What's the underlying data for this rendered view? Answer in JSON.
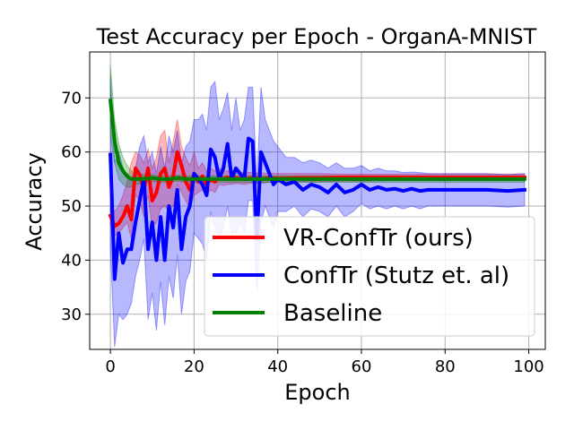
{
  "chart_data": {
    "type": "line",
    "title": "Test Accuracy per Epoch - OrganA-MNIST",
    "xlabel": "Epoch",
    "ylabel": "Accuracy",
    "xlim": [
      -4.95,
      103.95
    ],
    "ylim": [
      23.5,
      78.5
    ],
    "xticks": [
      0,
      20,
      40,
      60,
      80,
      100
    ],
    "yticks": [
      30,
      40,
      50,
      60,
      70
    ],
    "grid": true,
    "legend_position": "lower-right",
    "series": [
      {
        "name": "VR-ConfTr (ours)",
        "color": "#ff0000",
        "band_color": "#ff0000",
        "x": [
          0,
          1,
          2,
          3,
          4,
          5,
          6,
          7,
          8,
          9,
          10,
          11,
          12,
          13,
          14,
          15,
          16,
          17,
          18,
          19,
          20,
          21,
          22,
          23,
          24,
          25,
          26,
          27,
          28,
          29,
          30,
          32,
          34,
          36,
          38,
          40,
          45,
          50,
          55,
          60,
          65,
          70,
          75,
          80,
          85,
          90,
          95,
          99
        ],
        "mean": [
          48.2,
          46.3,
          46.8,
          48.0,
          50.0,
          47.5,
          57.0,
          55.8,
          53.0,
          57.0,
          51.0,
          52.5,
          56.0,
          57.0,
          53.5,
          55.5,
          60.0,
          57.5,
          54.5,
          53.0,
          56.0,
          54.5,
          55.5,
          54.0,
          55.0,
          54.5,
          55.5,
          55.0,
          55.3,
          55.0,
          55.2,
          55.0,
          55.2,
          55.0,
          55.2,
          55.1,
          55.2,
          55.2,
          55.3,
          55.3,
          55.3,
          55.3,
          55.3,
          55.3,
          55.3,
          55.3,
          55.3,
          55.3
        ],
        "upper": [
          49.5,
          49.0,
          50.0,
          52.0,
          54.5,
          58.0,
          60.0,
          59.5,
          58.0,
          60.5,
          57.0,
          59.0,
          63.0,
          64.0,
          58.0,
          62.0,
          66.0,
          61.0,
          59.0,
          57.5,
          60.0,
          57.0,
          58.0,
          56.5,
          57.0,
          56.5,
          57.0,
          56.5,
          56.5,
          56.3,
          56.3,
          56.2,
          56.2,
          56.1,
          56.1,
          56.0,
          56.0,
          56.0,
          55.9,
          55.9,
          55.9,
          55.9,
          55.9,
          55.9,
          55.9,
          55.9,
          55.9,
          55.9
        ],
        "lower": [
          46.5,
          44.5,
          45.0,
          46.0,
          47.0,
          44.0,
          52.0,
          51.0,
          48.0,
          52.0,
          46.0,
          47.0,
          49.5,
          50.0,
          49.0,
          50.0,
          54.0,
          52.5,
          51.0,
          49.5,
          52.0,
          52.5,
          53.0,
          52.0,
          53.0,
          52.5,
          54.0,
          53.8,
          54.0,
          54.0,
          54.2,
          54.0,
          54.3,
          54.2,
          54.4,
          54.4,
          54.5,
          54.5,
          54.6,
          54.6,
          54.7,
          54.7,
          54.7,
          54.7,
          54.7,
          54.7,
          54.7,
          54.7
        ]
      },
      {
        "name": "ConfTr (Stutz et. al)",
        "color": "#0000ff",
        "band_color": "#0000ff",
        "x": [
          0,
          1,
          2,
          3,
          4,
          5,
          6,
          7,
          8,
          9,
          10,
          11,
          12,
          13,
          14,
          15,
          16,
          17,
          18,
          19,
          20,
          21,
          22,
          23,
          24,
          25,
          26,
          27,
          28,
          29,
          30,
          31,
          32,
          33,
          34,
          35,
          36,
          37,
          38,
          39,
          40,
          42,
          44,
          46,
          48,
          50,
          52,
          54,
          56,
          58,
          60,
          62,
          64,
          66,
          68,
          70,
          72,
          74,
          76,
          78,
          80,
          85,
          90,
          95,
          99
        ],
        "mean": [
          59.5,
          36.5,
          45.0,
          39.5,
          42.0,
          42.0,
          47.0,
          51.0,
          55.0,
          42.0,
          47.0,
          40.0,
          48.0,
          40.0,
          50.0,
          46.0,
          53.0,
          42.0,
          48.0,
          50.0,
          56.0,
          55.0,
          54.0,
          52.0,
          60.5,
          59.0,
          55.0,
          57.0,
          61.5,
          55.0,
          57.0,
          56.0,
          55.0,
          62.5,
          62.0,
          44.0,
          60.0,
          58.0,
          56.0,
          54.0,
          55.0,
          54.0,
          54.5,
          53.0,
          54.0,
          53.5,
          52.5,
          54.0,
          52.5,
          53.0,
          54.0,
          53.0,
          53.5,
          53.0,
          53.2,
          52.8,
          53.2,
          52.8,
          53.0,
          53.0,
          53.0,
          53.0,
          53.0,
          52.8,
          53.0
        ],
        "upper": [
          74.0,
          58.0,
          60.0,
          57.0,
          56.0,
          55.0,
          57.0,
          61.0,
          63.0,
          58.0,
          60.0,
          56.0,
          61.0,
          57.0,
          63.0,
          60.0,
          64.0,
          58.0,
          61.0,
          62.0,
          66.0,
          66.0,
          67.0,
          64.0,
          72.0,
          73.0,
          66.0,
          68.0,
          71.0,
          64.0,
          70.0,
          64.0,
          66.0,
          72.0,
          72.0,
          54.0,
          72.0,
          66.0,
          64.0,
          62.0,
          61.0,
          59.0,
          59.0,
          58.0,
          58.5,
          58.0,
          57.0,
          58.0,
          57.0,
          57.0,
          57.5,
          56.5,
          57.0,
          56.5,
          56.5,
          56.2,
          56.3,
          56.2,
          56.0,
          56.0,
          56.0,
          56.0,
          56.0,
          55.8,
          56.0
        ],
        "lower": [
          42.0,
          24.0,
          30.0,
          29.0,
          30.0,
          32.0,
          37.0,
          40.0,
          44.0,
          29.0,
          34.0,
          27.0,
          36.0,
          28.0,
          37.0,
          33.0,
          41.0,
          30.0,
          36.0,
          38.0,
          45.0,
          44.0,
          43.0,
          40.0,
          49.0,
          46.0,
          44.0,
          46.0,
          50.0,
          45.0,
          45.0,
          47.0,
          45.0,
          51.0,
          51.0,
          34.0,
          47.0,
          50.0,
          48.0,
          46.0,
          49.0,
          49.0,
          50.0,
          48.0,
          49.5,
          49.0,
          48.0,
          50.0,
          48.0,
          49.0,
          50.5,
          49.5,
          50.0,
          49.5,
          50.0,
          49.5,
          50.0,
          49.5,
          50.0,
          50.0,
          50.0,
          50.0,
          50.0,
          49.8,
          50.0
        ]
      },
      {
        "name": "Baseline",
        "color": "#008000",
        "band_color": "#008000",
        "x": [
          0,
          1,
          2,
          3,
          4,
          5,
          6,
          8,
          10,
          12,
          14,
          16,
          18,
          20,
          25,
          30,
          35,
          40,
          50,
          60,
          70,
          80,
          90,
          99
        ],
        "mean": [
          69.5,
          62.0,
          58.0,
          56.5,
          55.5,
          55.0,
          55.0,
          55.0,
          55.2,
          55.0,
          55.0,
          55.2,
          55.0,
          55.0,
          55.0,
          55.0,
          55.0,
          55.0,
          55.0,
          55.0,
          55.0,
          55.0,
          55.0,
          55.0
        ],
        "upper": [
          76.0,
          66.0,
          61.5,
          59.0,
          57.5,
          56.5,
          56.0,
          55.8,
          55.8,
          55.6,
          55.6,
          55.7,
          55.6,
          55.6,
          55.6,
          55.6,
          55.6,
          55.6,
          55.6,
          55.6,
          55.6,
          55.6,
          55.6,
          55.6
        ],
        "lower": [
          63.0,
          58.0,
          55.0,
          54.0,
          53.5,
          53.5,
          54.0,
          54.2,
          54.5,
          54.4,
          54.4,
          54.6,
          54.4,
          54.4,
          54.4,
          54.4,
          54.4,
          54.4,
          54.4,
          54.4,
          54.4,
          54.4,
          54.4,
          54.4
        ]
      }
    ]
  }
}
